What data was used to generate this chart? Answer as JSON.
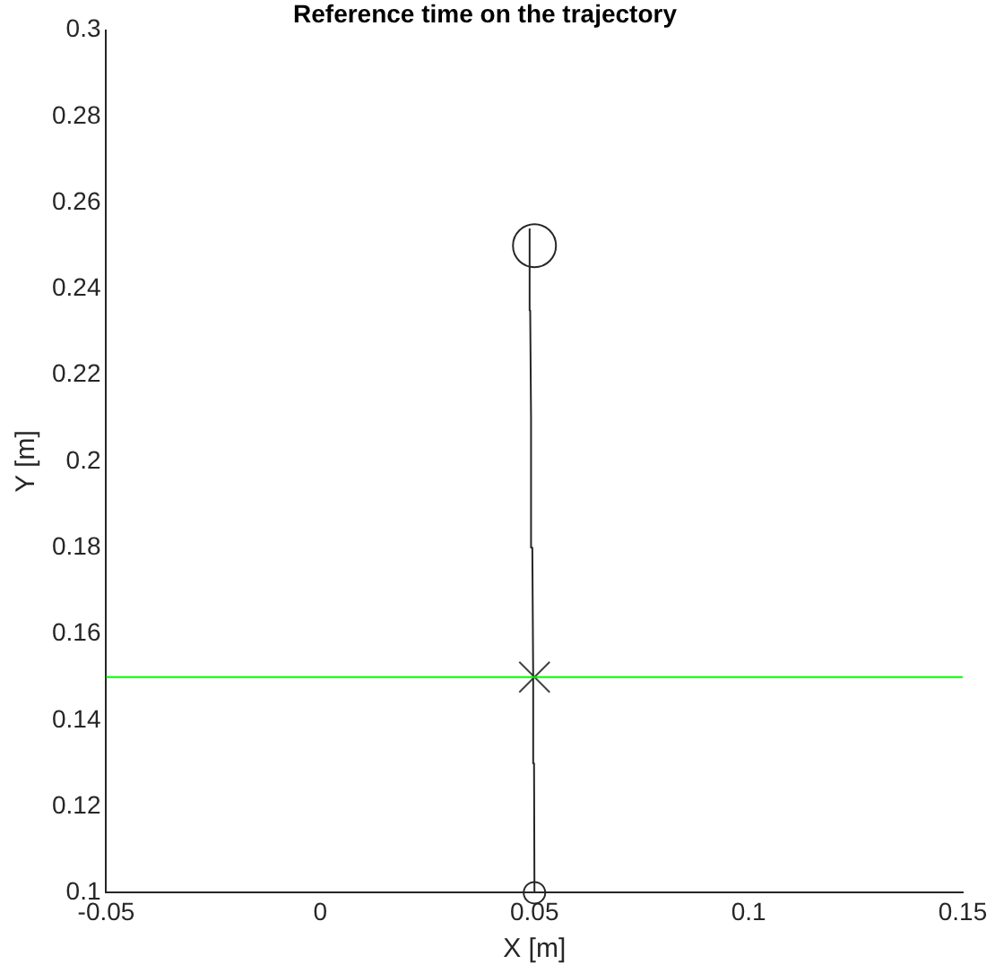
{
  "chart_data": {
    "type": "line",
    "title": "Reference time on the trajectory",
    "xlabel": "X [m]",
    "ylabel": "Y [m]",
    "xlim": [
      -0.05,
      0.15
    ],
    "xticks": [
      -0.05,
      0,
      0.05,
      0.1,
      0.15
    ],
    "ylim": [
      0.1,
      0.3
    ],
    "yticks": [
      0.1,
      0.12,
      0.14,
      0.16,
      0.18,
      0.2,
      0.22,
      0.24,
      0.26,
      0.28,
      0.3
    ],
    "grid": false,
    "legend": false,
    "marker": "none",
    "line_style": "solid",
    "series": [
      {
        "color": "#262626",
        "x": [
          0.05,
          0.0499,
          0.0497,
          0.0495,
          0.0492,
          0.049,
          0.0489,
          0.0488,
          0.0489
        ],
        "values": [
          0.1,
          0.13,
          0.15,
          0.18,
          0.21,
          0.235,
          0.248,
          0.253,
          0.254
        ]
      },
      {
        "type": "scatter",
        "color": "#262626",
        "marker": "circle",
        "x": [
          0.05
        ],
        "values": [
          0.1
        ]
      },
      {
        "type": "scatter",
        "color": "#404040",
        "marker": "cross",
        "x": [
          0.05
        ],
        "values": [
          0.15
        ]
      },
      {
        "type": "scatter",
        "color": "#262626",
        "marker": "circle",
        "x": [
          0.05
        ],
        "values": [
          0.25
        ]
      }
    ],
    "ref_lines": [
      {
        "axis": "y",
        "value": 0.15,
        "color": "#00ff00",
        "line_style": "solid"
      }
    ]
  }
}
